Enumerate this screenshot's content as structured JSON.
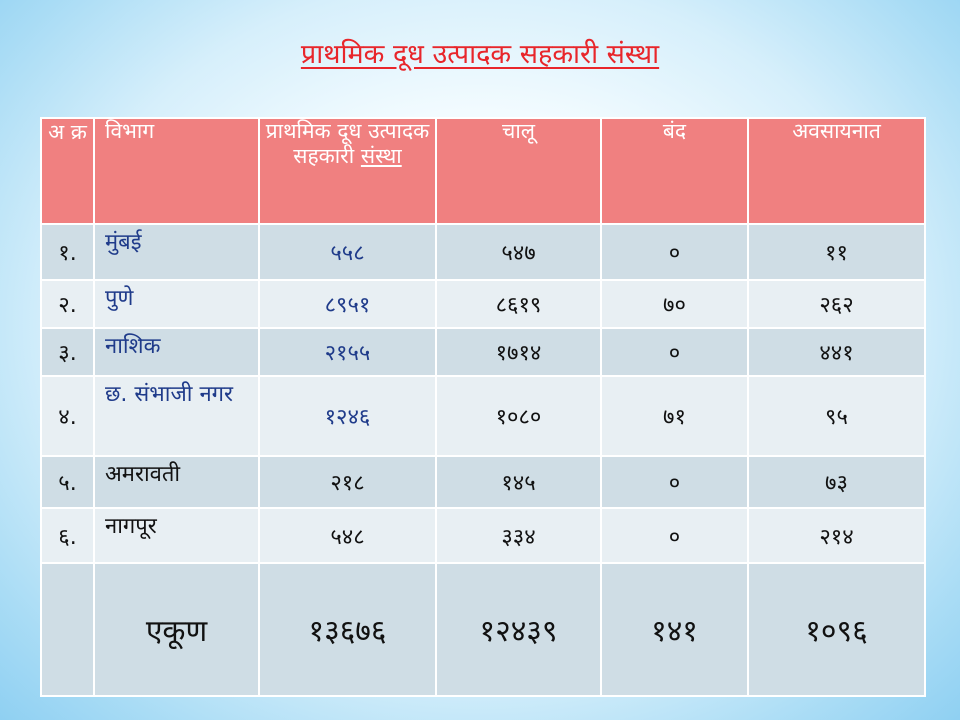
{
  "title": "प्राथमिक दूध उत्पादक सहकारी संस्था",
  "table": {
    "headers": {
      "sr": "अ क्र",
      "dept": "विभाग",
      "societies_line1": "प्राथमिक दूध उत्पादक सहकारी",
      "societies_line2": "संस्था",
      "active": "चालू",
      "closed": "बंद",
      "liquidation": "अवसायनात"
    },
    "rows": [
      {
        "sr": "१.",
        "dept": "मुंबई",
        "societies": "५५८",
        "active": "५४७",
        "closed": "०",
        "liquidation": "११"
      },
      {
        "sr": "२.",
        "dept": "पुणे",
        "societies": "८९५१",
        "active": "८६१९",
        "closed": "७०",
        "liquidation": "२६२"
      },
      {
        "sr": "३.",
        "dept": "नाशिक",
        "societies": "२१५५",
        "active": "१७१४",
        "closed": "०",
        "liquidation": "४४१"
      },
      {
        "sr": "४.",
        "dept": "छ. संभाजी नगर",
        "societies": "१२४६",
        "active": "१०८०",
        "closed": "७१",
        "liquidation": "९५"
      },
      {
        "sr": "५.",
        "dept": "अमरावती",
        "societies": "२१८",
        "active": "१४५",
        "closed": "०",
        "liquidation": "७३"
      },
      {
        "sr": "६.",
        "dept": "नागपूर",
        "societies": "५४८",
        "active": "३३४",
        "closed": "०",
        "liquidation": "२१४"
      }
    ],
    "total": {
      "label": "एकूण",
      "societies": "१३६७६",
      "active": "१२४३९",
      "closed": "१४१",
      "liquidation": "१०९६"
    }
  }
}
